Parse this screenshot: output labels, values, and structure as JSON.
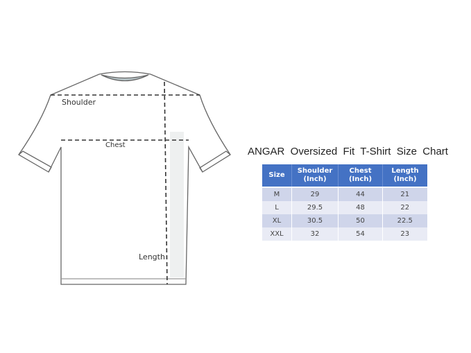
{
  "diagram": {
    "labels": {
      "shoulder": "Shoulder",
      "chest": "Chest",
      "length": "Length"
    }
  },
  "size_chart": {
    "title": "ANGAR  Oversized  Fit  T-Shirt  Size  Chart",
    "header_color": "#4472c4",
    "columns": [
      "Size",
      "Shoulder (Inch)",
      "Chest (Inch)",
      "Length (Inch)"
    ],
    "column_lines": [
      [
        "Size"
      ],
      [
        "Shoulder",
        "(Inch)"
      ],
      [
        "Chest",
        "(Inch)"
      ],
      [
        "Length",
        "(Inch)"
      ]
    ],
    "rows": [
      [
        "M",
        "29",
        "44",
        "21"
      ],
      [
        "L",
        "29.5",
        "48",
        "22"
      ],
      [
        "XL",
        "30.5",
        "50",
        "22.5"
      ],
      [
        "XXL",
        "32",
        "54",
        "23"
      ]
    ]
  }
}
